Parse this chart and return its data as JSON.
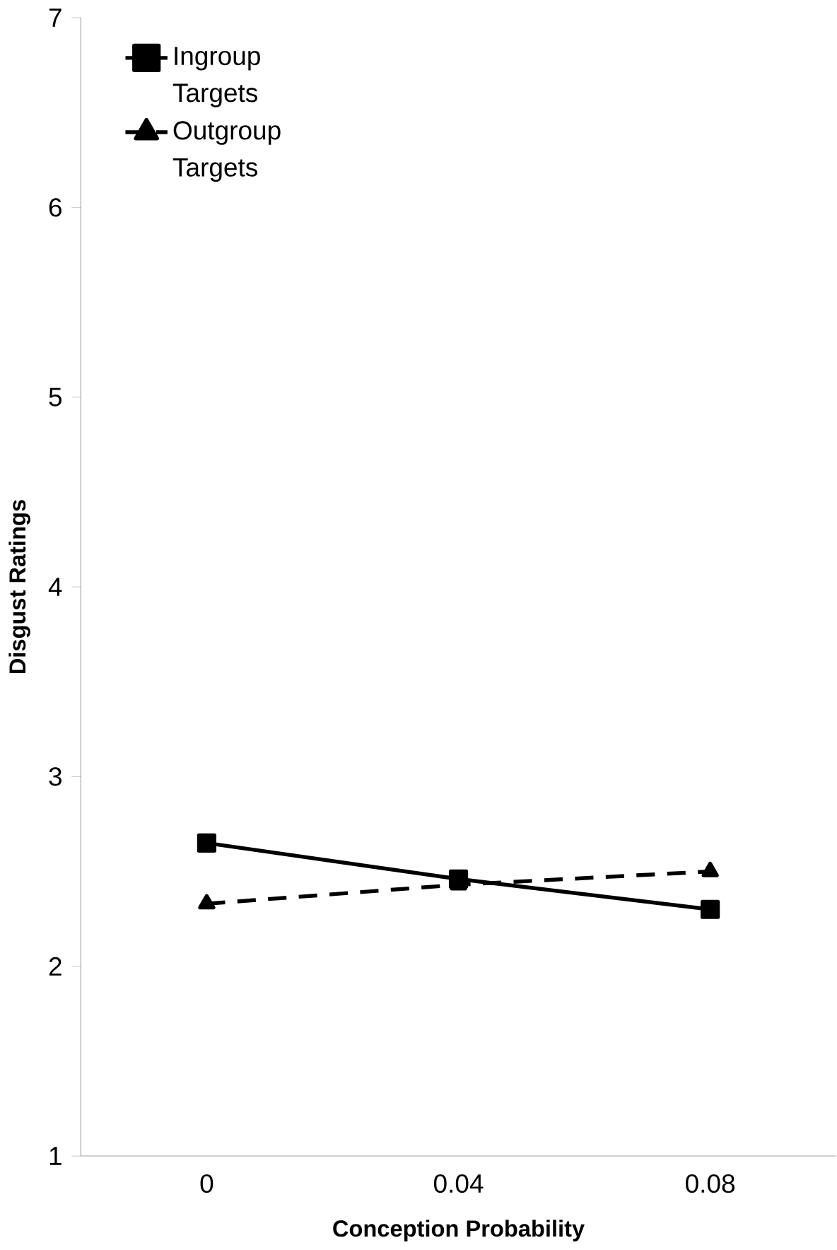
{
  "chart_data": {
    "type": "line",
    "xlabel": "Conception Probability",
    "ylabel": "Disgust Ratings",
    "categories": [
      "0",
      "0.04",
      "0.08"
    ],
    "series": [
      {
        "name": "Ingroup Targets",
        "color": "#000000",
        "marker": "square",
        "line_style": "solid",
        "values": [
          2.65,
          2.46,
          2.3
        ]
      },
      {
        "name": "Outgroup Targets",
        "color": "#000000",
        "marker": "triangle",
        "line_style": "dashed",
        "values": [
          2.33,
          2.43,
          2.5
        ]
      }
    ],
    "ylim": [
      1,
      7
    ],
    "yticks": [
      1,
      2,
      3,
      4,
      5,
      6,
      7
    ],
    "grid": false,
    "legend": "top left"
  }
}
